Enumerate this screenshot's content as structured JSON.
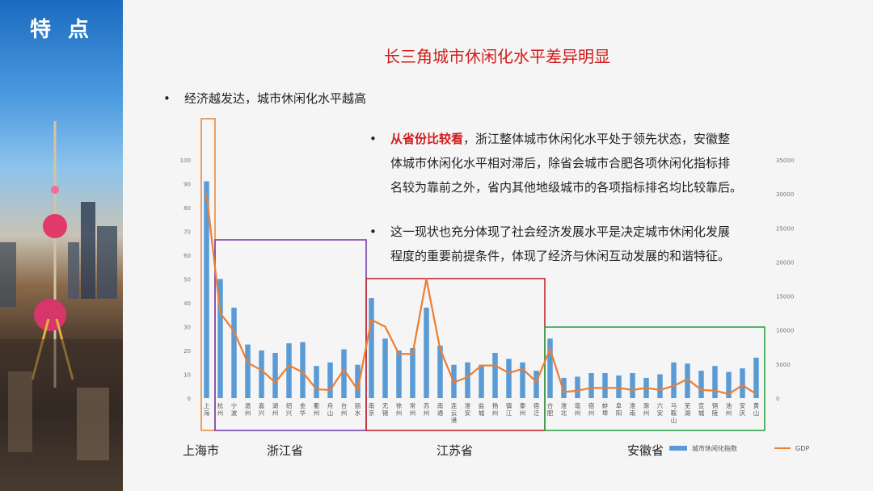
{
  "sidebar": {
    "title": "特 点"
  },
  "slide": {
    "title": "长三角城市休闲化水平差异明显",
    "bullet1": "经济越发达，城市休闲化水平越高",
    "bullet2_highlight": "从省份比较看",
    "bullet2_line1": "，浙江整体城市休闲化水平处于领先状态，安徽整",
    "bullet2_line2": "体城市休闲化水平相对滞后，除省会城市合肥各项休闲化指标排",
    "bullet2_line3": "名较为靠前之外，省内其他地级城市的各项指标排名均比较靠后。",
    "bullet3_line1": "这一现状也充分体现了社会经济发展水平是决定城市休闲化发展",
    "bullet3_line2": "程度的重要前提条件，体现了经济与休闲互动发展的和谐特征。",
    "bullet_symbol": "•"
  },
  "groups": [
    {
      "label": "上海市",
      "start": 0,
      "end": 0,
      "color": "#e98a3c"
    },
    {
      "label": "浙江省",
      "start": 1,
      "end": 11,
      "color": "#7a3fb0"
    },
    {
      "label": "江苏省",
      "start": 12,
      "end": 24,
      "color": "#c0282e"
    },
    {
      "label": "安徽省",
      "start": 25,
      "end": 40,
      "color": "#2ea34a"
    }
  ],
  "chart_data": {
    "type": "bar",
    "categories": [
      "上海",
      "杭州",
      "宁波",
      "温州",
      "嘉兴",
      "湖州",
      "绍兴",
      "金华",
      "衢州",
      "舟山",
      "台州",
      "丽水",
      "南京",
      "无锡",
      "徐州",
      "常州",
      "苏州",
      "南通",
      "连云港",
      "淮安",
      "盐城",
      "扬州",
      "镇江",
      "泰州",
      "宿迁",
      "合肥",
      "淮北",
      "亳州",
      "宿州",
      "蚌埠",
      "阜阳",
      "淮南",
      "滁州",
      "六安",
      "马鞍山",
      "芜湖",
      "宣城",
      "铜陵",
      "池州",
      "安庆",
      "黄山"
    ],
    "series": [
      {
        "name": "城市休闲化指数",
        "axis": "left",
        "kind": "bar",
        "color": "#5b9bd5",
        "values": [
          91,
          50,
          38,
          22.5,
          20,
          19,
          23,
          23.5,
          13.5,
          15,
          20.5,
          14,
          42,
          25,
          20,
          21,
          38,
          22,
          14,
          15,
          14,
          19,
          16.5,
          15,
          11.5,
          25,
          8.5,
          9,
          10.5,
          10.5,
          9.5,
          10.5,
          8.5,
          10,
          15,
          14.5,
          11.5,
          13.5,
          11,
          12.5,
          17
        ]
      },
      {
        "name": "GDP",
        "axis": "right",
        "kind": "line",
        "color": "#ed7d31",
        "values": [
          30000,
          12500,
          9800,
          5200,
          4100,
          2300,
          4800,
          3800,
          1300,
          1200,
          4200,
          1200,
          11500,
          10500,
          6500,
          6500,
          17500,
          7200,
          2300,
          3100,
          4800,
          4800,
          3700,
          4300,
          2400,
          7200,
          900,
          1100,
          1500,
          1500,
          1500,
          1200,
          1500,
          1200,
          1800,
          2800,
          1200,
          1100,
          600,
          1900,
          600
        ]
      }
    ],
    "yleft": {
      "ticks": [
        0,
        10,
        20,
        30,
        40,
        50,
        60,
        70,
        80,
        90,
        100
      ],
      "ylim": [
        0,
        100
      ]
    },
    "yright": {
      "ticks": [
        0,
        5000,
        10000,
        15000,
        20000,
        25000,
        30000,
        35000
      ],
      "ylim": [
        0,
        35000
      ]
    },
    "legend": {
      "position": "bottom-right",
      "bar_label": "城市休闲化指数",
      "line_label": "GDP"
    }
  }
}
